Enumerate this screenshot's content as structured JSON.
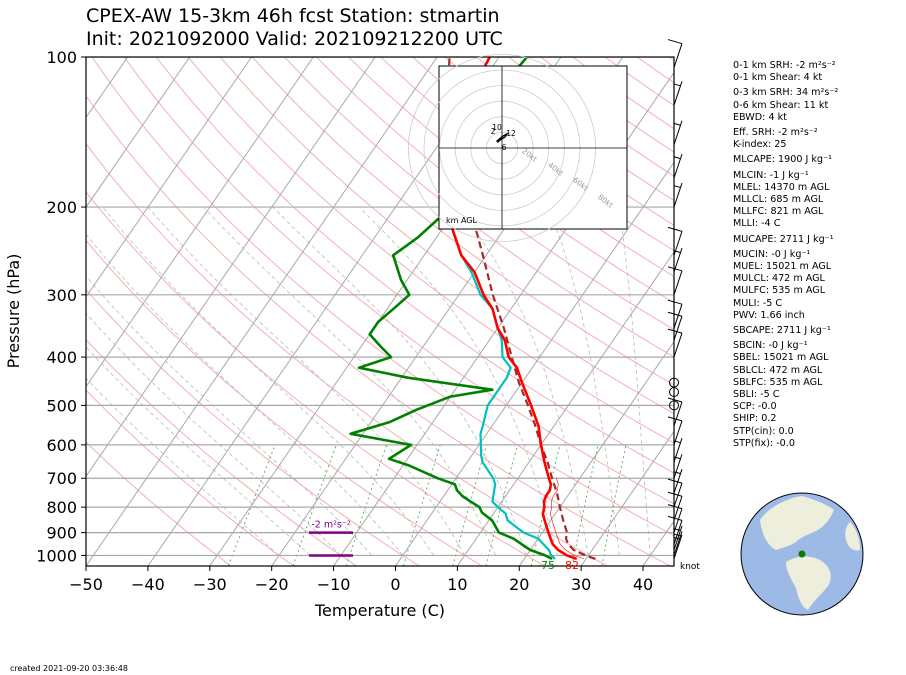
{
  "header": {
    "line1": "CPEX-AW 15-3km  46h fcst  Station: stmartin",
    "line2": "Init: 2021092000  Valid: 202109212200 UTC"
  },
  "chart_data": {
    "type": "line",
    "subtype": "skew-T log-P diagram",
    "xlabel": "Temperature (C)",
    "ylabel": "Pressure (hPa)",
    "x_ticks": [
      -50,
      -40,
      -30,
      -20,
      -10,
      0,
      10,
      20,
      30,
      40
    ],
    "y_ticks": [
      100,
      200,
      300,
      400,
      500,
      600,
      700,
      800,
      900,
      1000
    ],
    "xlim": [
      -50,
      45
    ],
    "ylim": [
      1050,
      100
    ],
    "yscale": "log",
    "colors": {
      "temperature": "#ff0000",
      "dewpoint": "#008000",
      "wetbulb": "#00bfbf",
      "parcel": "#a52a2a",
      "srh": "#800080",
      "wind": "#000000"
    },
    "series": [
      {
        "key": "temperature",
        "line": "solid",
        "points": [
          [
            1016,
            28.5
          ],
          [
            1000,
            26.5
          ],
          [
            975,
            24.5
          ],
          [
            950,
            23
          ],
          [
            925,
            22
          ],
          [
            900,
            21
          ],
          [
            875,
            20
          ],
          [
            850,
            19
          ],
          [
            825,
            18
          ],
          [
            800,
            17.5
          ],
          [
            780,
            16.8
          ],
          [
            760,
            16.5
          ],
          [
            740,
            16.5
          ],
          [
            720,
            16
          ],
          [
            700,
            15
          ],
          [
            650,
            12.5
          ],
          [
            600,
            10
          ],
          [
            550,
            7.5
          ],
          [
            500,
            4
          ],
          [
            450,
            0
          ],
          [
            420,
            -2.5
          ],
          [
            400,
            -5
          ],
          [
            370,
            -7.5
          ],
          [
            350,
            -10
          ],
          [
            320,
            -13
          ],
          [
            300,
            -16
          ],
          [
            270,
            -20
          ],
          [
            250,
            -24
          ],
          [
            230,
            -27
          ],
          [
            200,
            -32
          ],
          [
            180,
            -35
          ],
          [
            150,
            -38
          ],
          [
            130,
            -40
          ],
          [
            110,
            -41
          ],
          [
            100,
            -41.5
          ]
        ]
      },
      {
        "key": "wetbulb",
        "line": "solid",
        "points": [
          [
            1016,
            25
          ],
          [
            1000,
            24
          ],
          [
            975,
            23
          ],
          [
            950,
            21.5
          ],
          [
            925,
            20
          ],
          [
            900,
            17
          ],
          [
            875,
            15
          ],
          [
            850,
            13
          ],
          [
            825,
            12
          ],
          [
            800,
            10
          ],
          [
            780,
            8.5
          ],
          [
            760,
            8
          ],
          [
            740,
            7.5
          ],
          [
            720,
            7
          ],
          [
            700,
            6
          ],
          [
            650,
            2.5
          ],
          [
            630,
            1.5
          ],
          [
            600,
            0.3
          ],
          [
            570,
            -1
          ],
          [
            550,
            -1.5
          ],
          [
            500,
            -3
          ],
          [
            480,
            -3
          ],
          [
            460,
            -3
          ],
          [
            440,
            -3
          ],
          [
            420,
            -3.5
          ],
          [
            400,
            -6
          ],
          [
            370,
            -8
          ],
          [
            350,
            -10
          ],
          [
            320,
            -13
          ],
          [
            300,
            -16.5
          ],
          [
            270,
            -20.5
          ],
          [
            250,
            -24
          ],
          [
            230,
            -27
          ],
          [
            200,
            -32
          ],
          [
            180,
            -35
          ],
          [
            150,
            -38
          ],
          [
            130,
            -40
          ],
          [
            110,
            -41
          ],
          [
            100,
            -41.5
          ]
        ]
      },
      {
        "key": "dewpoint",
        "line": "solid",
        "points": [
          [
            1016,
            24.5
          ],
          [
            1000,
            23
          ],
          [
            975,
            20
          ],
          [
            950,
            18
          ],
          [
            925,
            16
          ],
          [
            900,
            13
          ],
          [
            850,
            10.5
          ],
          [
            820,
            8
          ],
          [
            800,
            7
          ],
          [
            780,
            5
          ],
          [
            760,
            3
          ],
          [
            740,
            1.5
          ],
          [
            720,
            0.5
          ],
          [
            700,
            -3
          ],
          [
            660,
            -9
          ],
          [
            640,
            -13
          ],
          [
            620,
            -12
          ],
          [
            600,
            -11
          ],
          [
            570,
            -22
          ],
          [
            540,
            -17
          ],
          [
            510,
            -14
          ],
          [
            480,
            -10
          ],
          [
            465,
            -4
          ],
          [
            440,
            -19
          ],
          [
            420,
            -28
          ],
          [
            400,
            -24
          ],
          [
            380,
            -27
          ],
          [
            360,
            -30
          ],
          [
            340,
            -30
          ],
          [
            320,
            -29
          ],
          [
            300,
            -28
          ],
          [
            280,
            -31
          ],
          [
            250,
            -35
          ],
          [
            230,
            -33
          ],
          [
            200,
            -31
          ],
          [
            180,
            -34
          ],
          [
            160,
            -37
          ],
          [
            140,
            -37.5
          ],
          [
            120,
            -36.5
          ],
          [
            100,
            -35.5
          ]
        ]
      },
      {
        "key": "parcel",
        "line": "dashed",
        "points": [
          [
            1016,
            31.5
          ],
          [
            1000,
            29.5
          ],
          [
            975,
            27
          ],
          [
            950,
            25.5
          ],
          [
            925,
            24.5
          ],
          [
            900,
            24
          ],
          [
            850,
            22
          ],
          [
            800,
            20
          ],
          [
            750,
            18
          ],
          [
            700,
            15.5
          ],
          [
            650,
            13
          ],
          [
            600,
            10
          ],
          [
            550,
            7
          ],
          [
            500,
            3.5
          ],
          [
            450,
            -0.5
          ],
          [
            400,
            -4.5
          ],
          [
            350,
            -9
          ],
          [
            300,
            -14.5
          ],
          [
            250,
            -20.5
          ],
          [
            200,
            -28
          ],
          [
            150,
            -37.5
          ],
          [
            120,
            -44
          ],
          [
            100,
            -48
          ]
        ]
      }
    ],
    "surface_labels": {
      "dewpoint": "75",
      "temperature": "82"
    },
    "srh_bars": [
      {
        "label": "-2 m²s⁻²",
        "p_top": 900,
        "p_bottom": 1000
      }
    ],
    "wind_barbs_knots": [
      {
        "p": 1016,
        "kt": 2
      },
      {
        "p": 1000,
        "kt": 5
      },
      {
        "p": 975,
        "kt": 5
      },
      {
        "p": 950,
        "kt": 10
      },
      {
        "p": 900,
        "kt": 10
      },
      {
        "p": 850,
        "kt": 10
      },
      {
        "p": 800,
        "kt": 10
      },
      {
        "p": 750,
        "kt": 5
      },
      {
        "p": 700,
        "kt": 5
      },
      {
        "p": 650,
        "kt": 5
      },
      {
        "p": 600,
        "kt": 10
      },
      {
        "p": 550,
        "kt": 10
      },
      {
        "p": 500,
        "kt": 0
      },
      {
        "p": 470,
        "kt": 0
      },
      {
        "p": 450,
        "kt": 0
      },
      {
        "p": 400,
        "kt": 10
      },
      {
        "p": 370,
        "kt": 10
      },
      {
        "p": 350,
        "kt": 10
      },
      {
        "p": 300,
        "kt": 10
      },
      {
        "p": 270,
        "kt": 5
      },
      {
        "p": 250,
        "kt": 10
      },
      {
        "p": 200,
        "kt": 5
      },
      {
        "p": 175,
        "kt": 5
      },
      {
        "p": 150,
        "kt": 5
      },
      {
        "p": 125,
        "kt": 5
      },
      {
        "p": 105,
        "kt": 10
      }
    ],
    "wind_unit_label": "knot",
    "hodograph": {
      "rings_labels": [
        "20kt",
        "40kt",
        "60kt",
        "80kt"
      ],
      "corner_label": "km AGL",
      "height_labels": [
        "10",
        "12",
        "6",
        "2"
      ]
    }
  },
  "stats": [
    "0-1 km SRH: -2 m²s⁻²",
    "0-1 km Shear: 4 kt",
    "0-3 km SRH: 34 m²s⁻²",
    "0-6 km Shear: 11 kt",
    "EBWD: 4 kt",
    "Eff. SRH: -2 m²s⁻²",
    "K-index: 25",
    "MLCAPE: 1900 J kg⁻¹",
    "MLCIN: -1 J kg⁻¹",
    "MLEL: 14370 m AGL",
    "MLLCL: 685 m AGL",
    "MLLFC: 821 m AGL",
    "MLLI: -4 C",
    "MUCAPE: 2711 J kg⁻¹",
    "MUCIN: -0 J kg⁻¹",
    "MUEL: 15021 m AGL",
    "MULCL: 472 m AGL",
    "MULFC: 535 m AGL",
    "MULI: -5 C",
    "PWV: 1.66 inch",
    "SBCAPE: 2711 J kg⁻¹",
    "SBCIN: -0 J kg⁻¹",
    "SBEL: 15021 m AGL",
    "SBLCL: 472 m AGL",
    "SBLFC: 535 m AGL",
    "SBLI: -5 C",
    "SCP: -0.0",
    "SHIP: 0.2",
    "STP(cin): 0.0",
    "STP(fix): -0.0"
  ],
  "footer": {
    "created": "created 2021-09-20 03:36:48"
  }
}
